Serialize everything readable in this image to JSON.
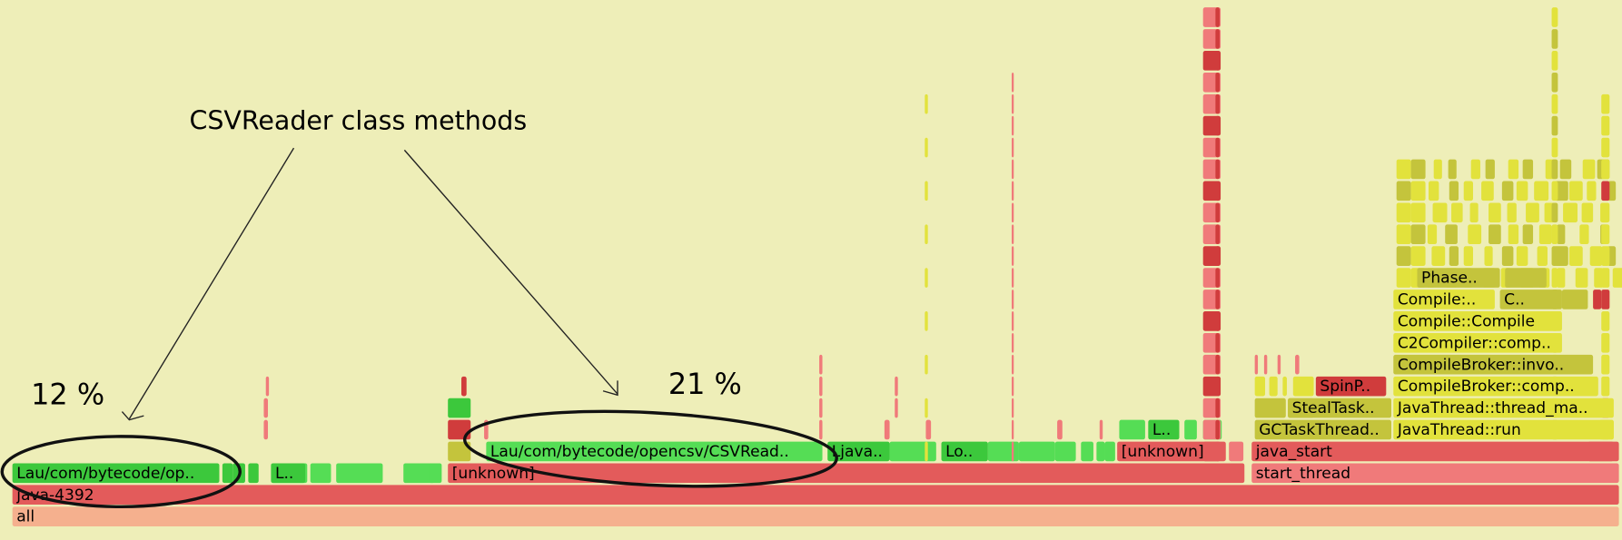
{
  "annotation": {
    "title": "CSVReader class methods",
    "left_percent": "12 %",
    "right_percent": "21 %"
  },
  "frames": [
    {
      "label": "all"
    },
    {
      "label": "java-4392"
    },
    {
      "label": "Lau/com/bytecode/op.."
    },
    {
      "label": "L.."
    },
    {
      "label": "[unknown]"
    },
    {
      "label": "start_thread"
    },
    {
      "label": "Lau/com/bytecode/opencsv/CSVRead.."
    },
    {
      "label": "Ljava.."
    },
    {
      "label": "Lo.."
    },
    {
      "label": "[unknown]"
    },
    {
      "label": "java_start"
    },
    {
      "label": "L.."
    },
    {
      "label": "GCTaskThread.."
    },
    {
      "label": "JavaThread::run"
    },
    {
      "label": "StealTask.."
    },
    {
      "label": "JavaThread::thread_ma.."
    },
    {
      "label": "SpinP.."
    },
    {
      "label": "CompileBroker::comp.."
    },
    {
      "label": "CompileBroker::invo.."
    },
    {
      "label": "C2Compiler::comp.."
    },
    {
      "label": "Compile::Compile"
    },
    {
      "label": "Compile:.."
    },
    {
      "label": "C.."
    },
    {
      "label": "Phase.."
    }
  ]
}
